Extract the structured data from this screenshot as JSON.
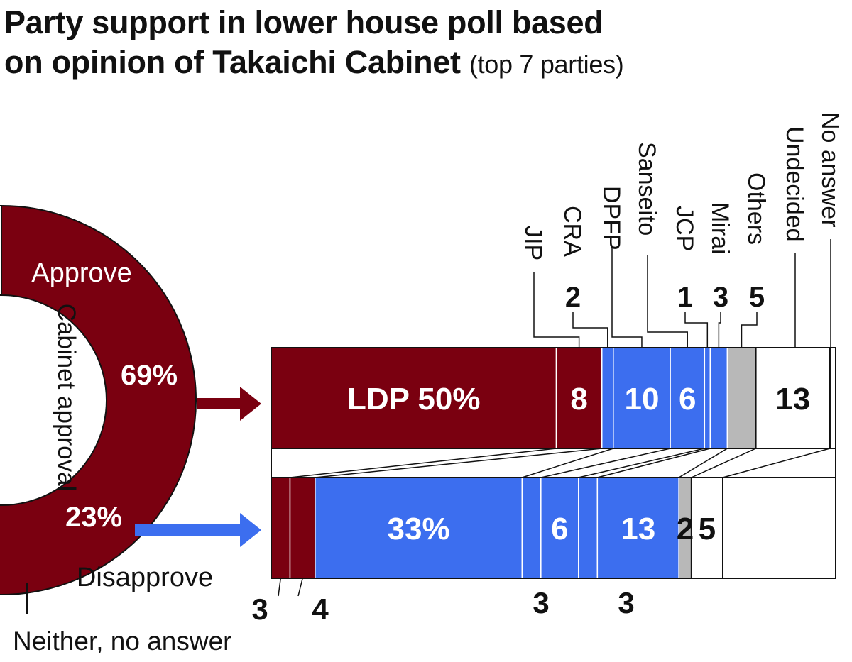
{
  "title_line1": "Party support in lower house poll based",
  "title_line2": "on opinion of Takaichi Cabinet",
  "title_suffix": "(top 7 parties)",
  "colors": {
    "approve": "#7a0010",
    "disapprove": "#3c6eef",
    "others": "#b8b8b8",
    "undecided": "#ffffff",
    "line": "#111111"
  },
  "chart_data": [
    {
      "type": "pie",
      "title": "Cabinet approval",
      "slices": [
        {
          "name": "Approve",
          "value": 69,
          "label": "69%"
        },
        {
          "name": "Disapprove",
          "value": 23,
          "label": "23%"
        },
        {
          "name": "Neither, no answer",
          "value": 8,
          "label": ""
        }
      ]
    },
    {
      "type": "bar",
      "stacked": true,
      "orientation": "horizontal",
      "categories": [
        "Approve",
        "Disapprove"
      ],
      "series": [
        {
          "name": "LDP",
          "values": [
            50,
            3
          ],
          "labels": [
            "LDP 50%",
            "3"
          ]
        },
        {
          "name": "JIP",
          "values": [
            8,
            4
          ],
          "labels": [
            "8",
            "4"
          ]
        },
        {
          "name": "CRA",
          "values": [
            2,
            33
          ],
          "labels": [
            "2",
            "33%"
          ]
        },
        {
          "name": "DPFP",
          "values": [
            10,
            3
          ],
          "labels": [
            "10",
            "3"
          ]
        },
        {
          "name": "Sanseito",
          "values": [
            6,
            6
          ],
          "labels": [
            "6",
            "6"
          ]
        },
        {
          "name": "JCP",
          "values": [
            1,
            3
          ],
          "labels": [
            "1",
            "3"
          ]
        },
        {
          "name": "Mirai",
          "values": [
            3,
            13
          ],
          "labels": [
            "3",
            "13"
          ]
        },
        {
          "name": "Others",
          "values": [
            5,
            2
          ],
          "labels": [
            "5",
            "2"
          ]
        },
        {
          "name": "Undecided",
          "values": [
            13,
            5
          ],
          "labels": [
            "13",
            "5"
          ]
        },
        {
          "name": "No answer",
          "values": [
            1,
            18
          ],
          "labels": [
            "",
            "18"
          ]
        }
      ]
    }
  ]
}
